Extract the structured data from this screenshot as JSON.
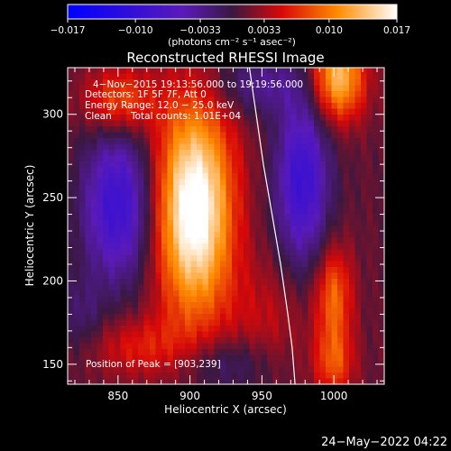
{
  "chart_data": {
    "type": "heatmap",
    "title": "Reconstructed RHESSI Image",
    "xlabel": "Heliocentric X (arcsec)",
    "ylabel": "Heliocentric Y (arcsec)",
    "xlim": [
      815,
      1035
    ],
    "ylim": [
      138,
      328
    ],
    "x_ticks": [
      850,
      900,
      950,
      1000
    ],
    "y_ticks": [
      150,
      200,
      250,
      300
    ],
    "colorbar": {
      "min": -0.017,
      "max": 0.017,
      "tick_values": [
        -0.017,
        -0.01,
        -0.0033,
        0.0033,
        0.01,
        0.017
      ],
      "tick_labels": [
        "−0.017",
        "−0.010",
        "−0.0033",
        "0.0033",
        "0.010",
        "0.017"
      ],
      "unit_label": "(photons cm⁻² s⁻¹ asec⁻²)"
    },
    "annotations": [
      "4−Nov−2015 19:13:56.000 to 19:19:56.000",
      "Detectors: 1F 5F 7F, Att 0",
      "Energy Range: 12.0 − 25.0 keV",
      "Clean",
      "Total counts: 1.01E+04"
    ],
    "peak_text": "Position of Peak = [903,239]",
    "peak": {
      "x": 903,
      "y": 239,
      "value": 0.017
    },
    "components": [
      {
        "x": 903,
        "y": 243,
        "sx": 19,
        "sy": 46,
        "amp": 0.0175
      },
      {
        "x": 851,
        "y": 308,
        "sx": 17,
        "sy": 14,
        "amp": 0.0075
      },
      {
        "x": 865,
        "y": 160,
        "sx": 24,
        "sy": 13,
        "amp": 0.0045
      },
      {
        "x": 1003,
        "y": 322,
        "sx": 13,
        "sy": 18,
        "amp": 0.0125
      },
      {
        "x": 1000,
        "y": 190,
        "sx": 9,
        "sy": 22,
        "amp": 0.008
      },
      {
        "x": 1000,
        "y": 150,
        "sx": 10,
        "sy": 14,
        "amp": 0.006
      },
      {
        "x": 953,
        "y": 176,
        "sx": 20,
        "sy": 26,
        "amp": 0.003
      },
      {
        "x": 850,
        "y": 245,
        "sx": 17,
        "sy": 32,
        "amp": -0.0105
      },
      {
        "x": 978,
        "y": 260,
        "sx": 13,
        "sy": 35,
        "amp": -0.0105
      },
      {
        "x": 947,
        "y": 318,
        "sx": 24,
        "sy": 13,
        "amp": -0.0045
      },
      {
        "x": 925,
        "y": 150,
        "sx": 24,
        "sy": 12,
        "amp": -0.004
      },
      {
        "x": 825,
        "y": 180,
        "sx": 10,
        "sy": 16,
        "amp": -0.003
      }
    ],
    "limb": [
      [
        941,
        330
      ],
      [
        946,
        300
      ],
      [
        951,
        270
      ],
      [
        957,
        240
      ],
      [
        963,
        210
      ],
      [
        968,
        180
      ],
      [
        971,
        160
      ],
      [
        973,
        138
      ]
    ],
    "grid": false
  },
  "footer": {
    "timestamp": "24−May−2022 04:22"
  }
}
